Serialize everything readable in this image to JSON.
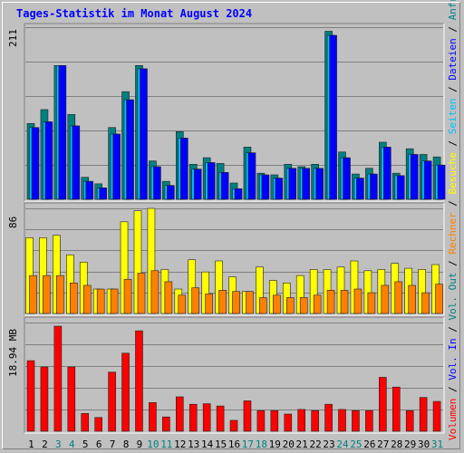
{
  "title": "Tages-Statistik im Monat August 2024",
  "chart_data": [
    {
      "type": "bar",
      "panel": "top",
      "ymax_label": "211",
      "ylim": [
        0,
        211
      ],
      "categories": [
        "1",
        "2",
        "3",
        "4",
        "5",
        "6",
        "7",
        "8",
        "9",
        "10",
        "11",
        "12",
        "13",
        "14",
        "15",
        "16",
        "17",
        "18",
        "19",
        "20",
        "21",
        "22",
        "23",
        "24",
        "25",
        "26",
        "27",
        "28",
        "29",
        "30",
        "31"
      ],
      "series": [
        {
          "name": "Anfragen",
          "color": "#008080",
          "values": [
            93,
            110,
            164,
            104,
            27,
            19,
            88,
            132,
            164,
            47,
            22,
            83,
            43,
            51,
            44,
            20,
            64,
            32,
            30,
            43,
            40,
            43,
            206,
            58,
            31,
            38,
            70,
            32,
            62,
            55,
            52
          ]
        },
        {
          "name": "Seiten",
          "color": "#00c0ff",
          "values": [
            88,
            95,
            164,
            90,
            22,
            14,
            80,
            122,
            160,
            40,
            17,
            75,
            37,
            45,
            33,
            13,
            57,
            30,
            26,
            38,
            38,
            38,
            201,
            51,
            26,
            31,
            64,
            29,
            55,
            47,
            42
          ]
        },
        {
          "name": "Dateien",
          "color": "#0000ff",
          "values": [
            88,
            95,
            164,
            90,
            22,
            14,
            80,
            122,
            160,
            40,
            17,
            75,
            37,
            45,
            33,
            13,
            57,
            30,
            26,
            38,
            38,
            38,
            201,
            51,
            26,
            31,
            64,
            29,
            55,
            47,
            42
          ]
        }
      ]
    },
    {
      "type": "bar",
      "panel": "middle",
      "ymax_label": "86",
      "ylim": [
        0,
        86
      ],
      "categories": [
        "1",
        "2",
        "3",
        "4",
        "5",
        "6",
        "7",
        "8",
        "9",
        "10",
        "11",
        "12",
        "13",
        "14",
        "15",
        "16",
        "17",
        "18",
        "19",
        "20",
        "21",
        "22",
        "23",
        "24",
        "25",
        "26",
        "27",
        "28",
        "29",
        "30",
        "31"
      ],
      "series": [
        {
          "name": "Besuche",
          "color": "#ffff00",
          "values": [
            62,
            62,
            64,
            48,
            42,
            20,
            20,
            75,
            84,
            86,
            36,
            20,
            44,
            34,
            43,
            30,
            18,
            38,
            27,
            25,
            31,
            36,
            36,
            38,
            43,
            35,
            36,
            41,
            37,
            36,
            40
          ]
        },
        {
          "name": "Rechner",
          "color": "#ff8000",
          "values": [
            31,
            31,
            31,
            25,
            23,
            20,
            20,
            28,
            33,
            35,
            26,
            15,
            21,
            16,
            19,
            18,
            18,
            13,
            15,
            13,
            13,
            15,
            19,
            19,
            20,
            17,
            23,
            26,
            23,
            17,
            24
          ]
        }
      ]
    },
    {
      "type": "bar",
      "panel": "bottom",
      "ymax_label": "18.94 MB",
      "ylim": [
        0,
        18.94
      ],
      "unit": "MB",
      "categories": [
        "1",
        "2",
        "3",
        "4",
        "5",
        "6",
        "7",
        "8",
        "9",
        "10",
        "11",
        "12",
        "13",
        "14",
        "15",
        "16",
        "17",
        "18",
        "19",
        "20",
        "21",
        "22",
        "23",
        "24",
        "25",
        "26",
        "27",
        "28",
        "29",
        "30",
        "31"
      ],
      "series": [
        {
          "name": "Volumen",
          "color": "#ff0000",
          "values": [
            12.3,
            11.2,
            18.3,
            11.2,
            3.1,
            2.4,
            10.3,
            13.6,
            17.5,
            5.0,
            2.5,
            6.0,
            4.7,
            4.8,
            4.4,
            1.9,
            5.3,
            3.6,
            3.6,
            3.0,
            3.8,
            3.6,
            4.7,
            3.8,
            3.6,
            3.6,
            9.4,
            7.7,
            3.6,
            5.9,
            5.2
          ]
        }
      ]
    }
  ],
  "x_labels": [
    {
      "t": "1",
      "c": "#000000"
    },
    {
      "t": "2",
      "c": "#000000"
    },
    {
      "t": "3",
      "c": "#008080"
    },
    {
      "t": "4",
      "c": "#008080"
    },
    {
      "t": "5",
      "c": "#000000"
    },
    {
      "t": "6",
      "c": "#000000"
    },
    {
      "t": "7",
      "c": "#000000"
    },
    {
      "t": "8",
      "c": "#000000"
    },
    {
      "t": "9",
      "c": "#000000"
    },
    {
      "t": "10",
      "c": "#008080"
    },
    {
      "t": "11",
      "c": "#008080"
    },
    {
      "t": "12",
      "c": "#000000"
    },
    {
      "t": "13",
      "c": "#000000"
    },
    {
      "t": "14",
      "c": "#000000"
    },
    {
      "t": "15",
      "c": "#000000"
    },
    {
      "t": "16",
      "c": "#000000"
    },
    {
      "t": "17",
      "c": "#008080"
    },
    {
      "t": "18",
      "c": "#008080"
    },
    {
      "t": "19",
      "c": "#000000"
    },
    {
      "t": "20",
      "c": "#000000"
    },
    {
      "t": "21",
      "c": "#000000"
    },
    {
      "t": "22",
      "c": "#000000"
    },
    {
      "t": "23",
      "c": "#000000"
    },
    {
      "t": "24",
      "c": "#008080"
    },
    {
      "t": "25",
      "c": "#008080"
    },
    {
      "t": "26",
      "c": "#000000"
    },
    {
      "t": "27",
      "c": "#000000"
    },
    {
      "t": "28",
      "c": "#000000"
    },
    {
      "t": "29",
      "c": "#000000"
    },
    {
      "t": "30",
      "c": "#000000"
    },
    {
      "t": "31",
      "c": "#008080"
    }
  ],
  "right_legend": [
    {
      "t": "Volumen",
      "c": "#ff0000"
    },
    {
      "t": " / ",
      "c": "#000000"
    },
    {
      "t": "Vol. In",
      "c": "#0000ff"
    },
    {
      "t": " / ",
      "c": "#000000"
    },
    {
      "t": "Vol. Out",
      "c": "#008080"
    },
    {
      "t": " / ",
      "c": "#000000"
    },
    {
      "t": "Rechner",
      "c": "#ff8000"
    },
    {
      "t": " / ",
      "c": "#000000"
    },
    {
      "t": "Besuche",
      "c": "#ffff00"
    },
    {
      "t": " / ",
      "c": "#000000"
    },
    {
      "t": "Seiten",
      "c": "#00c0ff"
    },
    {
      "t": " / ",
      "c": "#000000"
    },
    {
      "t": "Dateien",
      "c": "#0000ff"
    },
    {
      "t": " / ",
      "c": "#000000"
    },
    {
      "t": "Anfragen",
      "c": "#008080"
    }
  ]
}
